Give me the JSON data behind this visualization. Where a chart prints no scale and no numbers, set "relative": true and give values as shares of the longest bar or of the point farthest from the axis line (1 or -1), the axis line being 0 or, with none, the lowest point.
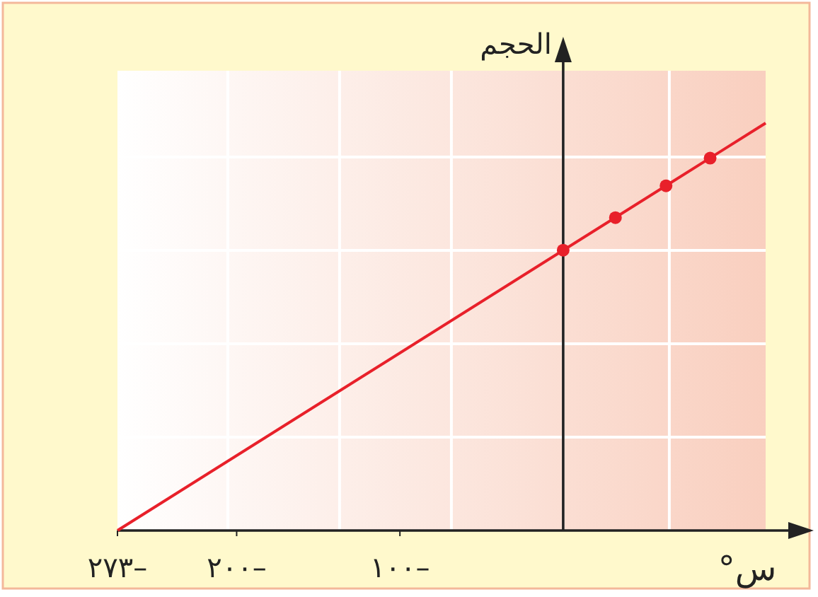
{
  "chart_data": {
    "type": "line",
    "xlabel": "°س",
    "ylabel": "الحجم",
    "relative": true,
    "xlim": [
      -273,
      124
    ],
    "xticks": [
      {
        "value": -273,
        "label": "٢٧٣–"
      },
      {
        "value": -200,
        "label": "٢٠٠–"
      },
      {
        "value": -100,
        "label": "١٠٠–"
      }
    ],
    "grid": true,
    "series": [
      {
        "color": "#e8202a",
        "x": [
          -273,
          124
        ],
        "values": [
          0,
          1
        ],
        "marker": "none"
      },
      {
        "type": "scatter",
        "color": "#e8202a",
        "x": [
          0,
          32,
          63,
          90
        ],
        "values": [
          0.688,
          0.768,
          0.846,
          0.914
        ],
        "marker": "circle"
      }
    ]
  }
}
